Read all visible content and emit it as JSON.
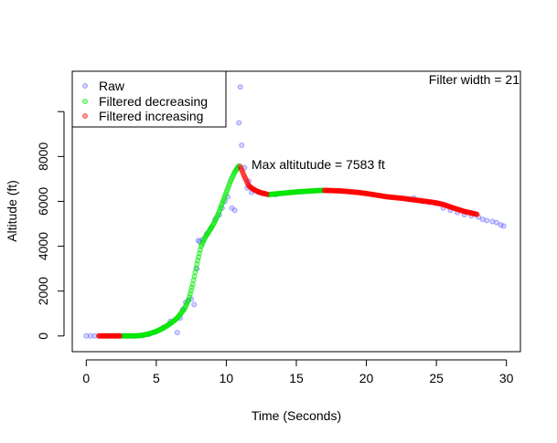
{
  "chart_data": {
    "type": "scatter",
    "xlabel": "Time (Seconds)",
    "ylabel": "Altitude (ft)",
    "xlim": [
      -1,
      31
    ],
    "ylim": [
      -700,
      11800
    ],
    "x_ticks": [
      0,
      5,
      10,
      15,
      20,
      25,
      30
    ],
    "y_ticks": [
      0,
      2000,
      4000,
      6000,
      8000,
      10000
    ],
    "y_tick_labels": [
      "0",
      "2000",
      "4000",
      "6000",
      "8000",
      ""
    ],
    "grid": false,
    "legend_position": "top-left",
    "annotations": {
      "max_altitude": "Max altitutude = 7583 ft",
      "filter_width": "Filter width =  21"
    },
    "series": [
      {
        "name": "Raw",
        "color": "#8080ff",
        "points": [
          [
            0,
            0
          ],
          [
            0.3,
            0
          ],
          [
            0.6,
            0
          ],
          [
            0.9,
            0
          ],
          [
            1.2,
            0
          ],
          [
            1.5,
            0
          ],
          [
            1.8,
            0
          ],
          [
            2.1,
            0
          ],
          [
            2.4,
            0
          ],
          [
            2.7,
            0
          ],
          [
            3.0,
            0
          ],
          [
            3.5,
            0
          ],
          [
            4.0,
            20
          ],
          [
            4.5,
            80
          ],
          [
            5.0,
            200
          ],
          [
            5.5,
            380
          ],
          [
            6.0,
            650
          ],
          [
            6.5,
            150
          ],
          [
            6.7,
            800
          ],
          [
            6.9,
            1200
          ],
          [
            7.1,
            1500
          ],
          [
            7.3,
            1600
          ],
          [
            7.5,
            1650
          ],
          [
            7.7,
            1400
          ],
          [
            7.9,
            3000
          ],
          [
            8.0,
            4250
          ],
          [
            8.1,
            4200
          ],
          [
            8.3,
            4300
          ],
          [
            8.6,
            4550
          ],
          [
            8.9,
            4800
          ],
          [
            9.2,
            5200
          ],
          [
            9.5,
            5400
          ],
          [
            9.7,
            5700
          ],
          [
            9.9,
            6000
          ],
          [
            10.1,
            6200
          ],
          [
            10.4,
            5700
          ],
          [
            10.6,
            5600
          ],
          [
            10.8,
            7500
          ],
          [
            10.9,
            9500
          ],
          [
            11.0,
            11100
          ],
          [
            11.1,
            8500
          ],
          [
            11.3,
            7500
          ],
          [
            11.5,
            6600
          ],
          [
            11.6,
            6900
          ],
          [
            11.8,
            6400
          ],
          [
            12.0,
            6500
          ],
          [
            12.3,
            6400
          ],
          [
            12.6,
            6350
          ],
          [
            13.0,
            6300
          ],
          [
            13.5,
            6300
          ],
          [
            23.0,
            6100
          ],
          [
            23.4,
            6150
          ],
          [
            24.0,
            6000
          ],
          [
            24.5,
            5950
          ],
          [
            25.0,
            5900
          ],
          [
            25.5,
            5700
          ],
          [
            26.0,
            5600
          ],
          [
            26.5,
            5500
          ],
          [
            27.0,
            5400
          ],
          [
            27.5,
            5350
          ],
          [
            28.0,
            5300
          ],
          [
            28.3,
            5200
          ],
          [
            28.6,
            5150
          ],
          [
            29.0,
            5100
          ],
          [
            29.3,
            5050
          ],
          [
            29.6,
            4950
          ],
          [
            29.8,
            4900
          ]
        ]
      },
      {
        "name": "Filtered decreasing",
        "color": "#00ff00",
        "segments": [
          [
            [
              2.5,
              0
            ],
            [
              3.0,
              0
            ],
            [
              3.5,
              0
            ],
            [
              4.0,
              30
            ],
            [
              4.5,
              100
            ],
            [
              5.0,
              200
            ],
            [
              5.5,
              350
            ],
            [
              6.0,
              550
            ],
            [
              6.5,
              800
            ],
            [
              7.0,
              1200
            ],
            [
              7.3,
              1600
            ],
            [
              7.6,
              2300
            ],
            [
              7.9,
              3200
            ],
            [
              8.2,
              4000
            ],
            [
              8.5,
              4400
            ],
            [
              8.8,
              4700
            ],
            [
              9.1,
              5000
            ],
            [
              9.4,
              5400
            ],
            [
              9.7,
              5900
            ],
            [
              10.0,
              6400
            ],
            [
              10.3,
              6900
            ],
            [
              10.6,
              7300
            ],
            [
              10.9,
              7583
            ]
          ],
          [
            [
              13.0,
              6300
            ],
            [
              13.5,
              6330
            ],
            [
              14.0,
              6360
            ],
            [
              14.5,
              6390
            ],
            [
              15.0,
              6420
            ],
            [
              15.5,
              6440
            ],
            [
              16.0,
              6460
            ],
            [
              16.5,
              6480
            ],
            [
              17.0,
              6490
            ]
          ]
        ]
      },
      {
        "name": "Filtered increasing",
        "color": "#ff0000",
        "segments": [
          [
            [
              0.9,
              0
            ],
            [
              1.2,
              0
            ],
            [
              1.5,
              0
            ],
            [
              1.8,
              0
            ],
            [
              2.1,
              0
            ],
            [
              2.4,
              0
            ]
          ],
          [
            [
              11.0,
              7550
            ],
            [
              11.3,
              7100
            ],
            [
              11.6,
              6700
            ],
            [
              11.9,
              6550
            ],
            [
              12.2,
              6450
            ],
            [
              12.5,
              6380
            ],
            [
              12.9,
              6320
            ]
          ],
          [
            [
              17.0,
              6490
            ],
            [
              17.5,
              6480
            ],
            [
              18.0,
              6470
            ],
            [
              18.5,
              6450
            ],
            [
              19.0,
              6420
            ],
            [
              19.5,
              6390
            ],
            [
              20.0,
              6350
            ],
            [
              20.5,
              6300
            ],
            [
              21.0,
              6250
            ],
            [
              21.5,
              6200
            ],
            [
              22.0,
              6170
            ],
            [
              22.5,
              6140
            ],
            [
              23.0,
              6100
            ],
            [
              23.5,
              6060
            ],
            [
              24.0,
              6020
            ],
            [
              24.5,
              5980
            ],
            [
              25.0,
              5930
            ],
            [
              25.5,
              5860
            ],
            [
              26.0,
              5750
            ],
            [
              26.5,
              5650
            ],
            [
              27.0,
              5550
            ],
            [
              27.5,
              5480
            ],
            [
              27.9,
              5420
            ]
          ]
        ]
      }
    ]
  }
}
